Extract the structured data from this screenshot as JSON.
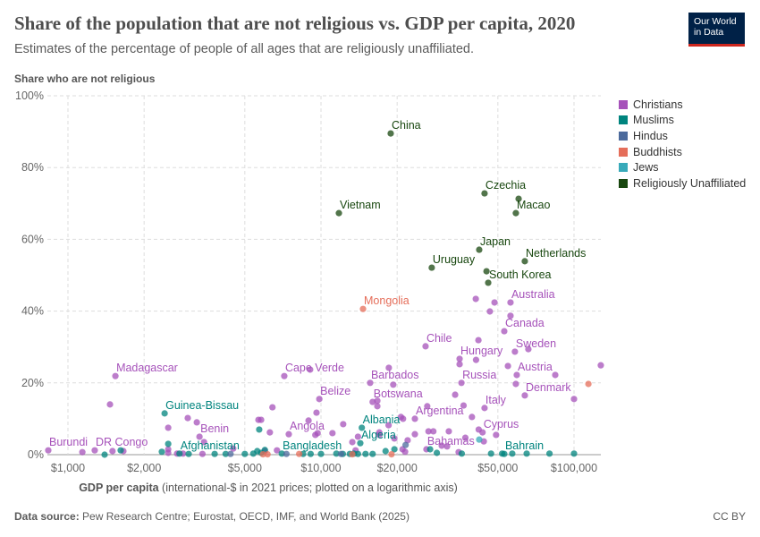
{
  "header": {
    "title": "Share of the population that are not religious vs. GDP per capita, 2020",
    "subtitle": "Estimates of the percentage of people of all ages that are religiously unaffiliated.",
    "logo_line1": "Our World",
    "logo_line2": "in Data"
  },
  "footer": {
    "source_label": "Data source:",
    "source_text": "Pew Research Centre; Eurostat, OECD, IMF, and World Bank (2025)",
    "license": "CC BY"
  },
  "chart_data": {
    "type": "scatter",
    "title": "Share of the population that are not religious vs. GDP per capita, 2020",
    "ylabel": "Share who are not religious",
    "xlabel_bold": "GDP per capita",
    "xlabel_rest": " (international-$ in 2021 prices; plotted on a logarithmic axis)",
    "x_scale": "log",
    "xlim": [
      830,
      128000
    ],
    "ylim": [
      0,
      100
    ],
    "x_ticks": [
      {
        "value": 1000,
        "label": "$1,000"
      },
      {
        "value": 2000,
        "label": "$2,000"
      },
      {
        "value": 5000,
        "label": "$5,000"
      },
      {
        "value": 10000,
        "label": "$10,000"
      },
      {
        "value": 20000,
        "label": "$20,000"
      },
      {
        "value": 50000,
        "label": "$50,000"
      },
      {
        "value": 100000,
        "label": "$100,000"
      }
    ],
    "y_ticks": [
      {
        "value": 0,
        "label": "0%"
      },
      {
        "value": 20,
        "label": "20%"
      },
      {
        "value": 40,
        "label": "40%"
      },
      {
        "value": 60,
        "label": "60%"
      },
      {
        "value": 80,
        "label": "80%"
      },
      {
        "value": 100,
        "label": "100%"
      }
    ],
    "grid": true,
    "legend_position": "right",
    "series": [
      {
        "name": "Christians",
        "color": "#a652ba",
        "points": [
          {
            "x": 836,
            "y": 1.2,
            "label": "Burundi"
          },
          {
            "x": 1140,
            "y": 0.7
          },
          {
            "x": 1276,
            "y": 1.2,
            "label": "DR Congo"
          },
          {
            "x": 1500,
            "y": 1.0
          },
          {
            "x": 1656,
            "y": 1.0
          },
          {
            "x": 1540,
            "y": 21.9,
            "label": "Madagascar"
          },
          {
            "x": 1466,
            "y": 14.0
          },
          {
            "x": 2490,
            "y": 7.5
          },
          {
            "x": 2490,
            "y": 1.5
          },
          {
            "x": 2490,
            "y": 0.5
          },
          {
            "x": 2975,
            "y": 10.2
          },
          {
            "x": 3230,
            "y": 9.0
          },
          {
            "x": 3310,
            "y": 5.0,
            "label": "Benin"
          },
          {
            "x": 3450,
            "y": 3.5
          },
          {
            "x": 2700,
            "y": 0.3
          },
          {
            "x": 2850,
            "y": 0.3
          },
          {
            "x": 3400,
            "y": 0.2
          },
          {
            "x": 4500,
            "y": 1.7
          },
          {
            "x": 5660,
            "y": 9.7
          },
          {
            "x": 5800,
            "y": 9.7
          },
          {
            "x": 6430,
            "y": 13.2
          },
          {
            "x": 6280,
            "y": 6.2
          },
          {
            "x": 6000,
            "y": 1.0
          },
          {
            "x": 6700,
            "y": 1.2
          },
          {
            "x": 7160,
            "y": 21.9,
            "label": "Cape Verde"
          },
          {
            "x": 9060,
            "y": 23.7
          },
          {
            "x": 7460,
            "y": 5.7,
            "label": "Angola"
          },
          {
            "x": 8930,
            "y": 9.5
          },
          {
            "x": 9850,
            "y": 15.5,
            "label": "Belize"
          },
          {
            "x": 9600,
            "y": 11.7
          },
          {
            "x": 9500,
            "y": 5.5
          },
          {
            "x": 9700,
            "y": 6.0
          },
          {
            "x": 11100,
            "y": 6.0
          },
          {
            "x": 12240,
            "y": 8.5
          },
          {
            "x": 13300,
            "y": 3.5
          },
          {
            "x": 14000,
            "y": 5.0
          },
          {
            "x": 13700,
            "y": 1.2
          },
          {
            "x": 15640,
            "y": 20.0,
            "label": "Barbados"
          },
          {
            "x": 18540,
            "y": 24.2
          },
          {
            "x": 19300,
            "y": 19.5
          },
          {
            "x": 16000,
            "y": 14.7,
            "label": "Botswana"
          },
          {
            "x": 16700,
            "y": 13.5
          },
          {
            "x": 16700,
            "y": 15.0
          },
          {
            "x": 17000,
            "y": 5.5
          },
          {
            "x": 17000,
            "y": 6.2
          },
          {
            "x": 18500,
            "y": 8.2
          },
          {
            "x": 19500,
            "y": 4.5
          },
          {
            "x": 20700,
            "y": 10.5
          },
          {
            "x": 21100,
            "y": 10.0
          },
          {
            "x": 23500,
            "y": 10.0,
            "label": "Argentina"
          },
          {
            "x": 22000,
            "y": 4.0
          },
          {
            "x": 23500,
            "y": 5.7
          },
          {
            "x": 26600,
            "y": 6.5
          },
          {
            "x": 27800,
            "y": 6.5
          },
          {
            "x": 32000,
            "y": 6.5
          },
          {
            "x": 25900,
            "y": 30.2,
            "label": "Chile"
          },
          {
            "x": 26300,
            "y": 13.5
          },
          {
            "x": 33900,
            "y": 16.7
          },
          {
            "x": 36600,
            "y": 13.7
          },
          {
            "x": 35300,
            "y": 26.7,
            "label": "Hungary"
          },
          {
            "x": 35300,
            "y": 25.2
          },
          {
            "x": 41900,
            "y": 31.9
          },
          {
            "x": 35900,
            "y": 20.0,
            "label": "Russia"
          },
          {
            "x": 39500,
            "y": 10.5
          },
          {
            "x": 37200,
            "y": 4.7
          },
          {
            "x": 41000,
            "y": 26.4
          },
          {
            "x": 40900,
            "y": 43.4
          },
          {
            "x": 48500,
            "y": 42.4
          },
          {
            "x": 46500,
            "y": 39.9
          },
          {
            "x": 56100,
            "y": 42.4,
            "label": "Australia"
          },
          {
            "x": 56100,
            "y": 38.7
          },
          {
            "x": 53000,
            "y": 34.4,
            "label": "Canada"
          },
          {
            "x": 58400,
            "y": 28.7,
            "label": "Sweden"
          },
          {
            "x": 66000,
            "y": 29.4
          },
          {
            "x": 54800,
            "y": 24.7
          },
          {
            "x": 59400,
            "y": 22.2,
            "label": "Austria"
          },
          {
            "x": 84300,
            "y": 22.2
          },
          {
            "x": 127600,
            "y": 24.9
          },
          {
            "x": 58900,
            "y": 19.7
          },
          {
            "x": 63900,
            "y": 16.5,
            "label": "Denmark"
          },
          {
            "x": 100000,
            "y": 15.5
          },
          {
            "x": 44300,
            "y": 13.0,
            "label": "Italy"
          },
          {
            "x": 42000,
            "y": 7.0
          },
          {
            "x": 43500,
            "y": 6.2,
            "label": "Cyprus"
          },
          {
            "x": 49200,
            "y": 5.5
          },
          {
            "x": 44000,
            "y": 3.7
          },
          {
            "x": 26100,
            "y": 1.5,
            "label": "Bahamas"
          },
          {
            "x": 35000,
            "y": 0.7
          },
          {
            "x": 21000,
            "y": 1.5
          },
          {
            "x": 21500,
            "y": 0.8
          },
          {
            "x": 30000,
            "y": 2.5
          },
          {
            "x": 31500,
            "y": 2.3
          }
        ]
      },
      {
        "name": "Muslims",
        "color": "#00847e",
        "points": [
          {
            "x": 1396,
            "y": 0
          },
          {
            "x": 1616,
            "y": 1.2
          },
          {
            "x": 2410,
            "y": 11.5,
            "label": "Guinea-Bissau"
          },
          {
            "x": 2490,
            "y": 3.0
          },
          {
            "x": 2350,
            "y": 0.8
          },
          {
            "x": 2760,
            "y": 0.3,
            "label": "Afghanistan"
          },
          {
            "x": 3000,
            "y": 0.2
          },
          {
            "x": 3800,
            "y": 0.2
          },
          {
            "x": 4200,
            "y": 0.2
          },
          {
            "x": 5000,
            "y": 0.2
          },
          {
            "x": 5400,
            "y": 0.3
          },
          {
            "x": 5600,
            "y": 1.0
          },
          {
            "x": 5700,
            "y": 7.0
          },
          {
            "x": 5800,
            "y": 0.5
          },
          {
            "x": 6000,
            "y": 1.3
          },
          {
            "x": 7000,
            "y": 0.3,
            "label": "Bangladesh"
          },
          {
            "x": 8500,
            "y": 0.2
          },
          {
            "x": 9100,
            "y": 0.2
          },
          {
            "x": 10000,
            "y": 0.2
          },
          {
            "x": 11500,
            "y": 0.3
          },
          {
            "x": 12200,
            "y": 0.2
          },
          {
            "x": 13000,
            "y": 0.2
          },
          {
            "x": 13500,
            "y": 0.3
          },
          {
            "x": 14000,
            "y": 0.2
          },
          {
            "x": 14500,
            "y": 7.5,
            "label": "Albania"
          },
          {
            "x": 14300,
            "y": 3.2,
            "label": "Algeria"
          },
          {
            "x": 15000,
            "y": 0.2
          },
          {
            "x": 16000,
            "y": 0.2
          },
          {
            "x": 18000,
            "y": 1.0
          },
          {
            "x": 19500,
            "y": 1.5
          },
          {
            "x": 28700,
            "y": 0.5
          },
          {
            "x": 27000,
            "y": 1.5
          },
          {
            "x": 36000,
            "y": 0.3
          },
          {
            "x": 47000,
            "y": 0.3
          },
          {
            "x": 52000,
            "y": 0.3
          },
          {
            "x": 53000,
            "y": 0.2,
            "label": "Bahrain"
          },
          {
            "x": 57000,
            "y": 0.3
          },
          {
            "x": 65000,
            "y": 0.3
          },
          {
            "x": 80000,
            "y": 0.3
          },
          {
            "x": 100000,
            "y": 0.3
          }
        ]
      },
      {
        "name": "Hindus",
        "color": "#4c6a9c",
        "points": [
          {
            "x": 4390,
            "y": 0.2
          },
          {
            "x": 7300,
            "y": 0.2
          },
          {
            "x": 12000,
            "y": 0.2
          },
          {
            "x": 21600,
            "y": 2.7
          }
        ]
      },
      {
        "name": "Buddhists",
        "color": "#e56e5a",
        "points": [
          {
            "x": 14660,
            "y": 40.6,
            "label": "Mongolia"
          },
          {
            "x": 5900,
            "y": 0.1
          },
          {
            "x": 6150,
            "y": 0.1
          },
          {
            "x": 8200,
            "y": 0.2
          },
          {
            "x": 13300,
            "y": 0.1
          },
          {
            "x": 19000,
            "y": 0.1
          },
          {
            "x": 114000,
            "y": 19.7
          }
        ]
      },
      {
        "name": "Jews",
        "color": "#38aaba",
        "points": [
          {
            "x": 42200,
            "y": 4.2
          }
        ]
      },
      {
        "name": "Religiously Unaffiliated",
        "color": "#18470f",
        "points": [
          {
            "x": 18860,
            "y": 89.5,
            "label": "China"
          },
          {
            "x": 11770,
            "y": 67.3,
            "label": "Vietnam"
          },
          {
            "x": 44300,
            "y": 72.8,
            "label": "Czechia"
          },
          {
            "x": 60400,
            "y": 71.3
          },
          {
            "x": 58900,
            "y": 67.3,
            "label": "Macao"
          },
          {
            "x": 42200,
            "y": 57.1,
            "label": "Japan"
          },
          {
            "x": 27400,
            "y": 52.1,
            "label": "Uruguay"
          },
          {
            "x": 63900,
            "y": 53.9,
            "label": "Netherlands"
          },
          {
            "x": 45100,
            "y": 51.1
          },
          {
            "x": 45800,
            "y": 47.9,
            "label": "South Korea"
          }
        ]
      }
    ]
  }
}
